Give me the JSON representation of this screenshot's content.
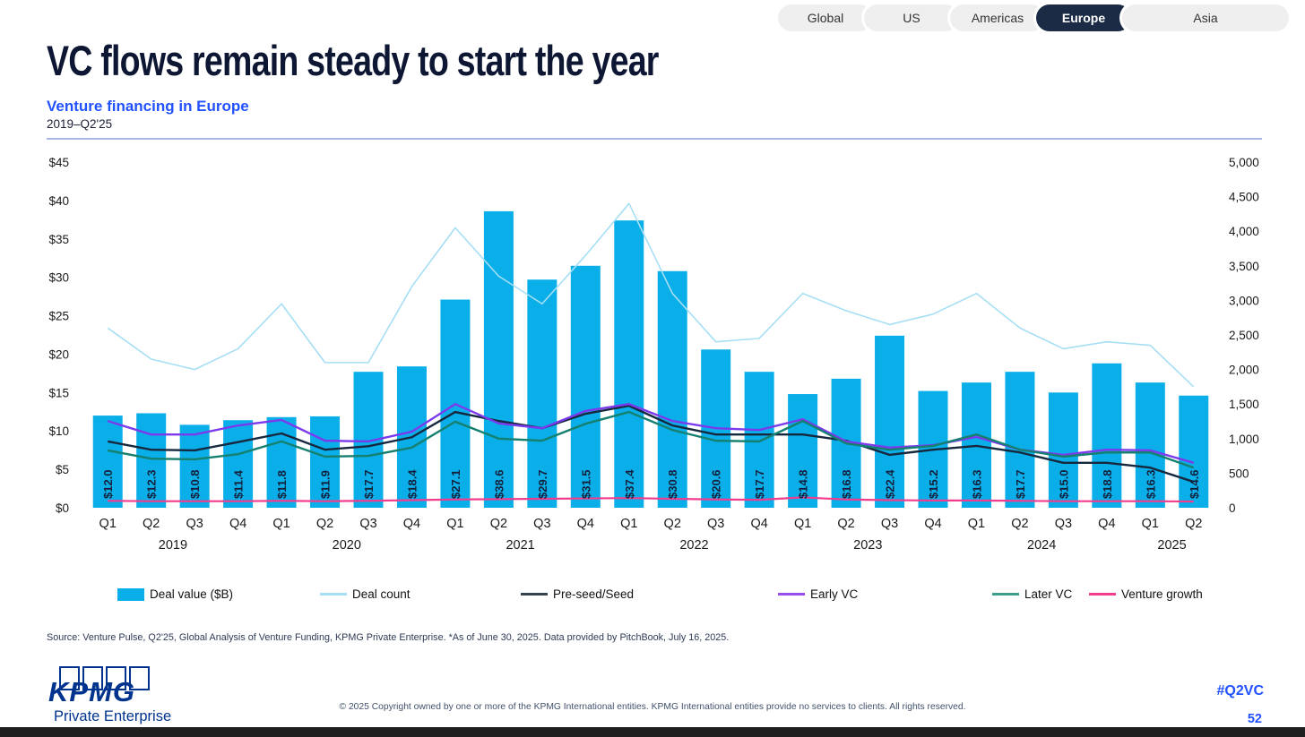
{
  "tabs": [
    {
      "label": "Global",
      "active": false
    },
    {
      "label": "US",
      "active": false
    },
    {
      "label": "Americas",
      "active": false
    },
    {
      "label": "Europe",
      "active": true
    },
    {
      "label": "Asia",
      "active": false
    }
  ],
  "header": {
    "title": "VC flows remain steady to start the year",
    "subtitle": "Venture financing in Europe",
    "period": "2019–Q2'25"
  },
  "chart_data": {
    "type": "combo-bar-line",
    "quarters": [
      "Q1",
      "Q2",
      "Q3",
      "Q4",
      "Q1",
      "Q2",
      "Q3",
      "Q4",
      "Q1",
      "Q2",
      "Q3",
      "Q4",
      "Q1",
      "Q2",
      "Q3",
      "Q4",
      "Q1",
      "Q2",
      "Q3",
      "Q4",
      "Q1",
      "Q2",
      "Q3",
      "Q4",
      "Q1",
      "Q2"
    ],
    "year_groups": [
      {
        "label": "2019",
        "quarters": 4
      },
      {
        "label": "2020",
        "quarters": 4
      },
      {
        "label": "2021",
        "quarters": 4
      },
      {
        "label": "2022",
        "quarters": 4
      },
      {
        "label": "2023",
        "quarters": 4
      },
      {
        "label": "2024",
        "quarters": 4
      },
      {
        "label": "2025",
        "quarters": 2
      }
    ],
    "left_axis": {
      "min": 0,
      "max": 45,
      "tick_labels": [
        "$45",
        "$40",
        "$35",
        "$30",
        "$25",
        "$20",
        "$15",
        "$10",
        "$5",
        "$0"
      ],
      "tick_values": [
        45,
        40,
        35,
        30,
        25,
        20,
        15,
        10,
        5,
        0
      ]
    },
    "right_axis": {
      "min": 0,
      "max": 5000,
      "tick_labels": [
        "5,000",
        "4,500",
        "4,000",
        "3,500",
        "3,000",
        "2,500",
        "2,000",
        "1,500",
        "1,000",
        "500",
        "0"
      ],
      "tick_values": [
        5000,
        4500,
        4000,
        3500,
        3000,
        2500,
        2000,
        1500,
        1000,
        500,
        0
      ]
    },
    "bars": {
      "name": "Deal value ($B)",
      "color": "#0aaee8",
      "values": [
        12.0,
        12.3,
        10.8,
        11.4,
        11.8,
        11.9,
        17.7,
        18.4,
        27.1,
        38.6,
        29.7,
        31.5,
        37.4,
        30.8,
        20.6,
        17.7,
        14.8,
        16.8,
        22.4,
        15.2,
        16.3,
        17.7,
        15.0,
        18.8,
        16.3,
        14.6
      ],
      "labels": [
        "$12.0",
        "$12.3",
        "$10.8",
        "$11.4",
        "$11.8",
        "$11.9",
        "$17.7",
        "$18.4",
        "$27.1",
        "$38.6",
        "$29.7",
        "$31.5",
        "$37.4",
        "$30.8",
        "$20.6",
        "$17.7",
        "$14.8",
        "$16.8",
        "$22.4",
        "$15.2",
        "$16.3",
        "$17.7",
        "$15.0",
        "$18.8",
        "$16.3",
        "$14.6"
      ]
    },
    "lines": [
      {
        "name": "Deal count",
        "color": "#a6dff5",
        "width": 1.6,
        "axis": "right",
        "values": [
          2600,
          2150,
          2000,
          2300,
          2950,
          2100,
          2100,
          3200,
          4050,
          3350,
          2950,
          3650,
          4400,
          3100,
          2400,
          2450,
          3100,
          2850,
          2650,
          2800,
          3100,
          2600,
          2300,
          2400,
          2350,
          1750
        ]
      },
      {
        "name": "Pre-seed/Seed",
        "color": "#16283e",
        "width": 2.4,
        "axis": "right",
        "values": [
          960,
          840,
          830,
          950,
          1075,
          840,
          890,
          1020,
          1385,
          1255,
          1150,
          1360,
          1475,
          1190,
          1060,
          1060,
          1060,
          970,
          765,
          840,
          895,
          800,
          650,
          650,
          580,
          375
        ]
      },
      {
        "name": "Early VC",
        "color": "#7c3aed",
        "width": 2.4,
        "axis": "right",
        "values": [
          1255,
          1060,
          1060,
          1190,
          1270,
          970,
          960,
          1100,
          1500,
          1220,
          1150,
          1400,
          1500,
          1255,
          1150,
          1125,
          1280,
          960,
          870,
          905,
          1025,
          840,
          765,
          840,
          830,
          650
        ]
      },
      {
        "name": "Later VC",
        "color": "#15806f",
        "width": 2.4,
        "axis": "right",
        "values": [
          830,
          710,
          700,
          775,
          960,
          740,
          750,
          870,
          1245,
          1000,
          970,
          1215,
          1385,
          1125,
          970,
          960,
          1255,
          930,
          840,
          895,
          1060,
          840,
          740,
          800,
          800,
          580
        ]
      },
      {
        "name": "Venture growth",
        "color": "#f23d8f",
        "width": 2.2,
        "axis": "right",
        "values": [
          100,
          95,
          95,
          95,
          100,
          95,
          100,
          110,
          120,
          125,
          130,
          135,
          140,
          130,
          120,
          115,
          150,
          120,
          110,
          105,
          105,
          100,
          95,
          95,
          95,
          90
        ]
      }
    ],
    "legend": [
      {
        "label": "Deal value ($B)",
        "color": "#0aaee8",
        "swatch": "bar"
      },
      {
        "label": "Deal count",
        "color": "#a6dff5",
        "swatch": "line"
      },
      {
        "label": "Pre-seed/Seed",
        "color": "#33424f",
        "swatch": "line"
      },
      {
        "label": "Early VC",
        "color": "#9b4deb",
        "swatch": "line"
      },
      {
        "label": "Later VC",
        "color": "#3d9e8c",
        "swatch": "line"
      },
      {
        "label": "Venture growth",
        "color": "#f23d8f",
        "swatch": "line"
      }
    ]
  },
  "source": {
    "text": "Source: Venture Pulse, Q2'25, Global Analysis of Venture Funding, KPMG Private Enterprise. *As of June 30, 2025. Data provided by PitchBook, July 16, 2025."
  },
  "footer": {
    "brand": "KPMG",
    "brand_sub": "Private Enterprise",
    "copyright": "© 2025 Copyright owned by one or more of the KPMG International entities. KPMG International entities provide no services to clients. All rights reserved.",
    "hashtag": "#Q2VC",
    "page_number": "52"
  }
}
